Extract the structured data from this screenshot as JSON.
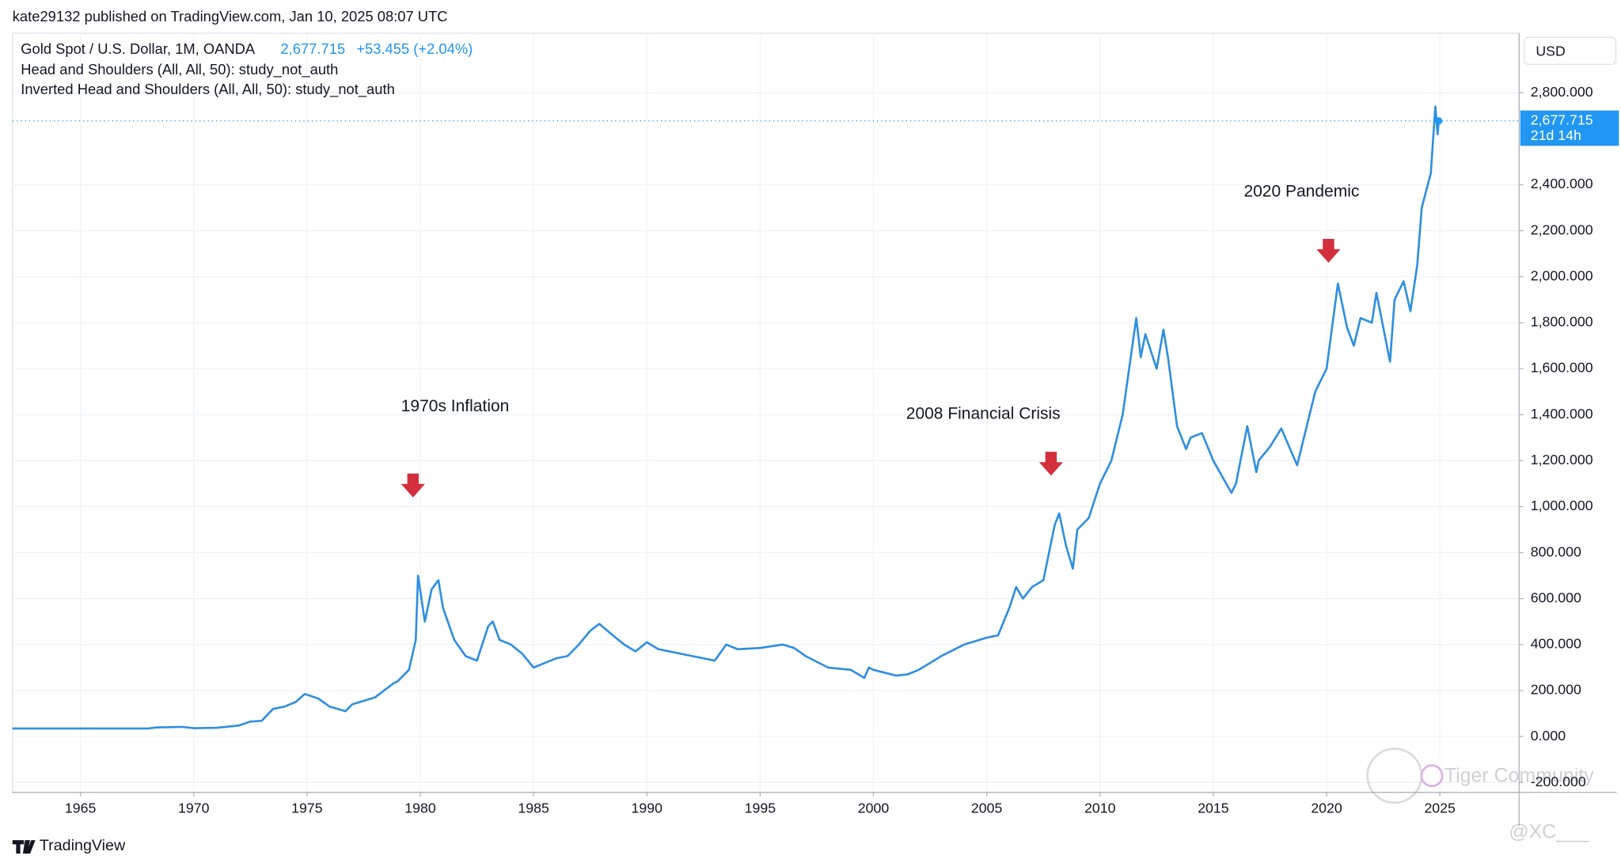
{
  "chart_data": {
    "type": "line",
    "header": "kate29132 published on TradingView.com, Jan 10, 2025 08:07 UTC",
    "legend": {
      "symbol": "Gold Spot / U.S. Dollar, 1M, OANDA",
      "price": "2,677.715",
      "change": "+53.455 (+2.04%)",
      "studies": [
        "Head and Shoulders (All, All, 50): study_not_auth",
        "Inverted Head and Shoulders (All, All, 50): study_not_auth"
      ]
    },
    "currency": "USD",
    "price_label": "2,677.715",
    "countdown": "21d 14h",
    "annotations": [
      "1970s Inflation",
      "2008 Financial Crisis",
      "2020 Pandemic"
    ],
    "footer": "TradingView",
    "watermark": "Tiger Community",
    "watermark_user": "@XC___",
    "color": "#2e8fe0",
    "grid": true,
    "xlim": [
      1962,
      2028.5
    ],
    "xticks": [
      1965,
      1970,
      1975,
      1980,
      1985,
      1990,
      1995,
      2000,
      2005,
      2010,
      2015,
      2020,
      2025
    ],
    "ylim": [
      -243,
      3059
    ],
    "yticks": [
      {
        "value": -200,
        "label": "-200.000"
      },
      {
        "value": 0,
        "label": "0.000"
      },
      {
        "value": 200,
        "label": "200.000"
      },
      {
        "value": 400,
        "label": "400.000"
      },
      {
        "value": 600,
        "label": "600.000"
      },
      {
        "value": 800,
        "label": "800.000"
      },
      {
        "value": 1000,
        "label": "1,000.000"
      },
      {
        "value": 1200,
        "label": "1,200.000"
      },
      {
        "value": 1400,
        "label": "1,400.000"
      },
      {
        "value": 1600,
        "label": "1,600.000"
      },
      {
        "value": 1800,
        "label": "1,800.000"
      },
      {
        "value": 2000,
        "label": "2,000.000"
      },
      {
        "value": 2200,
        "label": "2,200.000"
      },
      {
        "value": 2400,
        "label": "2,400.000"
      },
      {
        "value": 2800,
        "label": "2,800.000"
      }
    ],
    "x": [
      1962,
      1968,
      1968.3,
      1969.5,
      1970,
      1971,
      1972,
      1972.5,
      1973,
      1973.5,
      1974,
      1974.5,
      1974.9,
      1975.5,
      1976,
      1976.7,
      1977,
      1978,
      1978.8,
      1979,
      1979.5,
      1979.8,
      1979.9,
      1980.2,
      1980.5,
      1980.8,
      1981,
      1981.5,
      1982,
      1982.5,
      1983,
      1983.2,
      1983.5,
      1984,
      1984.5,
      1985,
      1985.5,
      1986,
      1986.5,
      1987,
      1987.5,
      1987.9,
      1988.5,
      1989,
      1989.5,
      1990,
      1990.5,
      1991,
      1992,
      1993,
      1993.5,
      1994,
      1995,
      1996,
      1996.5,
      1997,
      1997.5,
      1998,
      1999,
      1999.6,
      1999.8,
      2000,
      2001,
      2001.5,
      2002,
      2002.5,
      2003,
      2004,
      2005,
      2005.5,
      2006,
      2006.3,
      2006.6,
      2007,
      2007.5,
      2008,
      2008.2,
      2008.5,
      2008.8,
      2009,
      2009.5,
      2010,
      2010.5,
      2011,
      2011.6,
      2011.8,
      2012,
      2012.5,
      2012.8,
      2013,
      2013.4,
      2013.8,
      2014,
      2014.5,
      2015,
      2015.8,
      2016,
      2016.5,
      2016.9,
      2017,
      2017.5,
      2018,
      2018.7,
      2019,
      2019.5,
      2020,
      2020.5,
      2020.9,
      2021.2,
      2021.5,
      2022,
      2022.2,
      2022.8,
      2023,
      2023.4,
      2023.7,
      2024,
      2024.2,
      2024.6,
      2024.8,
      2024.9,
      2024.95
    ],
    "values": [
      35,
      35,
      39,
      42,
      36,
      38,
      48,
      65,
      68,
      120,
      130,
      150,
      185,
      165,
      130,
      110,
      140,
      170,
      230,
      240,
      290,
      420,
      700,
      500,
      640,
      680,
      560,
      420,
      350,
      330,
      480,
      500,
      420,
      400,
      360,
      300,
      320,
      340,
      350,
      400,
      460,
      490,
      440,
      400,
      370,
      410,
      380,
      370,
      350,
      330,
      400,
      380,
      385,
      400,
      385,
      350,
      325,
      300,
      290,
      255,
      300,
      290,
      265,
      270,
      290,
      320,
      350,
      400,
      430,
      440,
      560,
      650,
      600,
      650,
      680,
      920,
      970,
      830,
      730,
      900,
      950,
      1100,
      1200,
      1400,
      1820,
      1650,
      1750,
      1600,
      1770,
      1650,
      1350,
      1250,
      1300,
      1320,
      1200,
      1060,
      1100,
      1350,
      1150,
      1200,
      1260,
      1340,
      1180,
      1300,
      1500,
      1600,
      1970,
      1780,
      1700,
      1820,
      1800,
      1930,
      1630,
      1900,
      1980,
      1850,
      2050,
      2300,
      2450,
      2740,
      2620,
      2677.715
    ]
  }
}
